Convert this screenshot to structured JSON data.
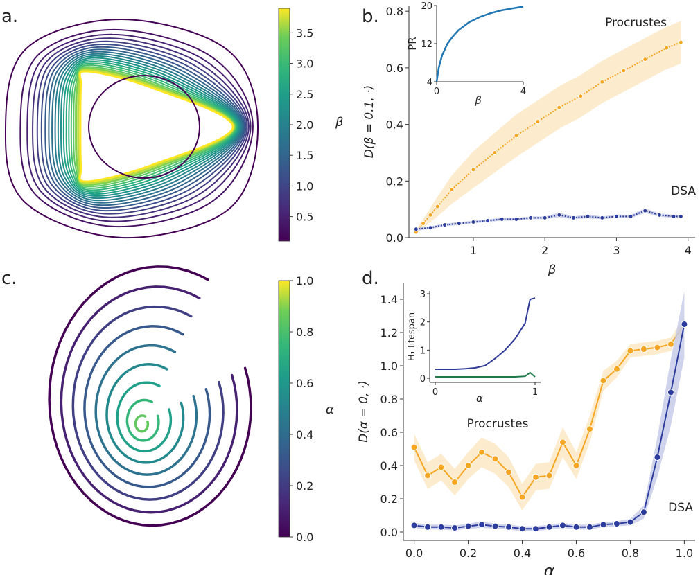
{
  "panel_labels": {
    "a": "a.",
    "b": "b.",
    "c": "c.",
    "d": "d."
  },
  "colors": {
    "procrustes": "#f5a623",
    "procrustes_band": "#fde7c4",
    "dsa": "#2d3d9e",
    "dsa_band": "#c7cbe8",
    "inset_pr": "#2077b4",
    "inset_h1_a": "#303a98",
    "inset_h1_b": "#1f7a4a"
  },
  "chart_data": [
    {
      "type": "line",
      "panel": "a",
      "description_of_marks": "nested closed orbits colored by beta (viridis)",
      "colorbar": {
        "label": "β",
        "ticks": [
          "0.5",
          "1.0",
          "1.5",
          "2.0",
          "2.5",
          "3.0",
          "3.5"
        ],
        "range": [
          0.1,
          3.9
        ],
        "colormap": "viridis"
      },
      "n_curves": 20
    },
    {
      "type": "line",
      "panel": "b",
      "xlabel": "β",
      "ylabel": "D(β = 0.1, ·)",
      "xlim": [
        0.1,
        4.1
      ],
      "ylim": [
        0,
        0.82
      ],
      "xticks": [
        "1",
        "2",
        "3",
        "4"
      ],
      "yticks": [
        "0.0",
        "0.2",
        "0.4",
        "0.6",
        "0.8"
      ],
      "series": [
        {
          "name": "Procrustes",
          "x": [
            0.2,
            0.3,
            0.4,
            0.5,
            0.7,
            1.0,
            1.3,
            1.6,
            1.9,
            2.2,
            2.5,
            2.8,
            3.1,
            3.4,
            3.7,
            3.9
          ],
          "values": [
            0.02,
            0.05,
            0.08,
            0.11,
            0.17,
            0.24,
            0.3,
            0.36,
            0.41,
            0.46,
            0.5,
            0.55,
            0.59,
            0.63,
            0.67,
            0.69
          ],
          "band": [
            0.01,
            0.015,
            0.025,
            0.035,
            0.05,
            0.065,
            0.07,
            0.075,
            0.075,
            0.075,
            0.075,
            0.075,
            0.075,
            0.075,
            0.075,
            0.075
          ]
        },
        {
          "name": "DSA",
          "x": [
            0.2,
            0.4,
            0.6,
            0.8,
            1.0,
            1.2,
            1.4,
            1.6,
            1.8,
            2.0,
            2.2,
            2.4,
            2.6,
            2.8,
            3.0,
            3.2,
            3.4,
            3.6,
            3.8,
            3.9
          ],
          "values": [
            0.03,
            0.035,
            0.045,
            0.05,
            0.055,
            0.06,
            0.065,
            0.065,
            0.07,
            0.07,
            0.08,
            0.07,
            0.075,
            0.07,
            0.075,
            0.075,
            0.095,
            0.08,
            0.075,
            0.075
          ],
          "band": [
            0.005,
            0.005,
            0.005,
            0.005,
            0.005,
            0.005,
            0.005,
            0.005,
            0.005,
            0.005,
            0.008,
            0.005,
            0.007,
            0.005,
            0.006,
            0.006,
            0.008,
            0.006,
            0.005,
            0.005
          ]
        }
      ],
      "inset": {
        "ylabel": "PR",
        "xlabel": "β",
        "xticks": [
          "0",
          "4"
        ],
        "yticks": [
          "4",
          "12",
          "20"
        ],
        "x": [
          0,
          0.1,
          0.25,
          0.5,
          0.75,
          1.0,
          1.5,
          2.0,
          2.5,
          3.0,
          3.5,
          4.0
        ],
        "values": [
          4,
          7,
          9.5,
          12,
          13.5,
          14.8,
          16.5,
          17.6,
          18.4,
          19.0,
          19.4,
          19.8
        ]
      }
    },
    {
      "type": "line",
      "panel": "c",
      "description_of_marks": "spiral trajectories colored by alpha (viridis)",
      "colorbar": {
        "label": "α",
        "ticks": [
          "0.0",
          "0.2",
          "0.4",
          "0.6",
          "0.8",
          "1.0"
        ],
        "range": [
          0,
          1
        ],
        "colormap": "viridis"
      }
    },
    {
      "type": "line",
      "panel": "d",
      "xlabel": "α",
      "ylabel": "D(α = 0, ·)",
      "xlim": [
        -0.04,
        1.04
      ],
      "ylim": [
        -0.05,
        1.5
      ],
      "xticks": [
        "0.0",
        "0.2",
        "0.4",
        "0.6",
        "0.8",
        "1.0"
      ],
      "yticks": [
        "0.0",
        "0.2",
        "0.4",
        "0.6",
        "0.8",
        "1.0",
        "1.2",
        "1.4"
      ],
      "series": [
        {
          "name": "Procrustes",
          "x": [
            0.0,
            0.05,
            0.1,
            0.15,
            0.2,
            0.25,
            0.3,
            0.35,
            0.4,
            0.45,
            0.5,
            0.55,
            0.6,
            0.65,
            0.7,
            0.75,
            0.8,
            0.85,
            0.9,
            0.95,
            1.0
          ],
          "values": [
            0.51,
            0.34,
            0.39,
            0.3,
            0.4,
            0.48,
            0.44,
            0.36,
            0.21,
            0.33,
            0.34,
            0.54,
            0.4,
            0.62,
            0.91,
            0.98,
            1.09,
            1.1,
            1.11,
            1.13,
            1.25
          ],
          "band": [
            0.08,
            0.08,
            0.08,
            0.08,
            0.08,
            0.09,
            0.09,
            0.09,
            0.08,
            0.08,
            0.08,
            0.09,
            0.08,
            0.08,
            0.06,
            0.05,
            0.04,
            0.04,
            0.04,
            0.04,
            0.04
          ]
        },
        {
          "name": "DSA",
          "x": [
            0.0,
            0.05,
            0.1,
            0.15,
            0.2,
            0.25,
            0.3,
            0.35,
            0.4,
            0.45,
            0.5,
            0.55,
            0.6,
            0.65,
            0.7,
            0.75,
            0.8,
            0.85,
            0.9,
            0.95,
            1.0
          ],
          "values": [
            0.04,
            0.03,
            0.03,
            0.025,
            0.035,
            0.045,
            0.035,
            0.03,
            0.02,
            0.02,
            0.03,
            0.04,
            0.03,
            0.03,
            0.045,
            0.05,
            0.06,
            0.12,
            0.45,
            0.84,
            1.25
          ],
          "band": [
            0.015,
            0.015,
            0.015,
            0.015,
            0.015,
            0.02,
            0.015,
            0.015,
            0.015,
            0.015,
            0.015,
            0.015,
            0.015,
            0.015,
            0.015,
            0.015,
            0.02,
            0.04,
            0.12,
            0.2,
            0.2
          ]
        }
      ],
      "inset": {
        "ylabel": "H₁ lifespan",
        "xlabel": "α",
        "xticks": [
          "0",
          "1"
        ],
        "yticks": [
          "0",
          "1",
          "2",
          "3"
        ],
        "series": [
          {
            "x": [
              0,
              0.1,
              0.2,
              0.3,
              0.4,
              0.5,
              0.6,
              0.7,
              0.8,
              0.9,
              0.95,
              1.0
            ],
            "values": [
              0.32,
              0.32,
              0.32,
              0.34,
              0.37,
              0.45,
              0.7,
              1.0,
              1.4,
              1.95,
              2.8,
              2.85
            ]
          },
          {
            "x": [
              0,
              0.2,
              0.4,
              0.6,
              0.8,
              0.9,
              0.95,
              1.0
            ],
            "values": [
              0.05,
              0.05,
              0.05,
              0.05,
              0.05,
              0.07,
              0.2,
              0.05
            ]
          }
        ]
      }
    }
  ]
}
